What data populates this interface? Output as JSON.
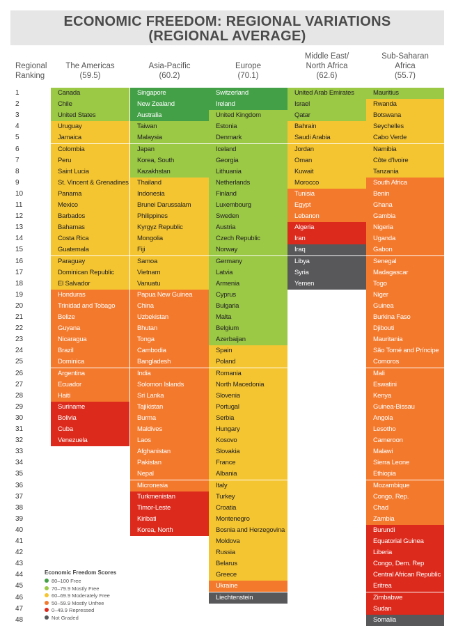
{
  "title_line1": "ECONOMIC FREEDOM: REGIONAL VARIATIONS",
  "title_line2": "(REGIONAL AVERAGE)",
  "rank_header_1": "Regional",
  "rank_header_2": "Ranking",
  "colors": {
    "free": "#43a047",
    "mostly_free": "#9bc845",
    "moderately_free": "#f5c531",
    "mostly_unfree": "#f3792d",
    "repressed": "#dc2a1c",
    "not_graded": "#58585b"
  },
  "legend": {
    "title": "Economic Freedom Scores",
    "items": [
      {
        "range": "80–100",
        "label": "Free",
        "category": "free"
      },
      {
        "range": "70–79.9",
        "label": "Mostly Free",
        "category": "mostly_free"
      },
      {
        "range": "60–69.9",
        "label": "Moderately Free",
        "category": "moderately_free"
      },
      {
        "range": "50–59.9",
        "label": "Mostly Unfree",
        "category": "mostly_unfree"
      },
      {
        "range": "0–49.9",
        "label": "Repressed",
        "category": "repressed"
      },
      {
        "range": "",
        "label": "Not Graded",
        "category": "not_graded"
      }
    ]
  },
  "chart_data": {
    "type": "table",
    "title": "ECONOMIC FREEDOM: REGIONAL VARIATIONS (REGIONAL AVERAGE)",
    "max_rank": 48,
    "regions": [
      {
        "name": "The Americas",
        "average": "(59.5)",
        "countries": [
          [
            "Canada",
            "mostly_free"
          ],
          [
            "Chile",
            "mostly_free"
          ],
          [
            "United States",
            "mostly_free"
          ],
          [
            "Uruguay",
            "moderately_free"
          ],
          [
            "Jamaica",
            "moderately_free"
          ],
          [
            "Colombia",
            "moderately_free"
          ],
          [
            "Peru",
            "moderately_free"
          ],
          [
            "Saint Lucia",
            "moderately_free"
          ],
          [
            "St. Vincent & Grenadines",
            "moderately_free"
          ],
          [
            "Panama",
            "moderately_free"
          ],
          [
            "Mexico",
            "moderately_free"
          ],
          [
            "Barbados",
            "moderately_free"
          ],
          [
            "Bahamas",
            "moderately_free"
          ],
          [
            "Costa Rica",
            "moderately_free"
          ],
          [
            "Guatemala",
            "moderately_free"
          ],
          [
            "Paraguay",
            "moderately_free"
          ],
          [
            "Dominican Republic",
            "moderately_free"
          ],
          [
            "El Salvador",
            "moderately_free"
          ],
          [
            "Honduras",
            "mostly_unfree"
          ],
          [
            "Trinidad and Tobago",
            "mostly_unfree"
          ],
          [
            "Belize",
            "mostly_unfree"
          ],
          [
            "Guyana",
            "mostly_unfree"
          ],
          [
            "Nicaragua",
            "mostly_unfree"
          ],
          [
            "Brazil",
            "mostly_unfree"
          ],
          [
            "Dominica",
            "mostly_unfree"
          ],
          [
            "Argentina",
            "mostly_unfree"
          ],
          [
            "Ecuador",
            "mostly_unfree"
          ],
          [
            "Haiti",
            "mostly_unfree"
          ],
          [
            "Suriname",
            "repressed"
          ],
          [
            "Bolivia",
            "repressed"
          ],
          [
            "Cuba",
            "repressed"
          ],
          [
            "Venezuela",
            "repressed"
          ]
        ]
      },
      {
        "name": "Asia-Pacific",
        "average": "(60.2)",
        "countries": [
          [
            "Singapore",
            "free"
          ],
          [
            "New Zealand",
            "free"
          ],
          [
            "Australia",
            "free"
          ],
          [
            "Taiwan",
            "mostly_free"
          ],
          [
            "Malaysia",
            "mostly_free"
          ],
          [
            "Japan",
            "mostly_free"
          ],
          [
            "Korea, South",
            "mostly_free"
          ],
          [
            "Kazakhstan",
            "mostly_free"
          ],
          [
            "Thailand",
            "moderately_free"
          ],
          [
            "Indonesia",
            "moderately_free"
          ],
          [
            "Brunei Darussalam",
            "moderately_free"
          ],
          [
            "Philippines",
            "moderately_free"
          ],
          [
            "Kyrgyz Republic",
            "moderately_free"
          ],
          [
            "Mongolia",
            "moderately_free"
          ],
          [
            "Fiji",
            "moderately_free"
          ],
          [
            "Samoa",
            "moderately_free"
          ],
          [
            "Vietnam",
            "moderately_free"
          ],
          [
            "Vanuatu",
            "moderately_free"
          ],
          [
            "Papua New Guinea",
            "mostly_unfree"
          ],
          [
            "China",
            "mostly_unfree"
          ],
          [
            "Uzbekistan",
            "mostly_unfree"
          ],
          [
            "Bhutan",
            "mostly_unfree"
          ],
          [
            "Tonga",
            "mostly_unfree"
          ],
          [
            "Cambodia",
            "mostly_unfree"
          ],
          [
            "Bangladesh",
            "mostly_unfree"
          ],
          [
            "India",
            "mostly_unfree"
          ],
          [
            "Solomon Islands",
            "mostly_unfree"
          ],
          [
            "Sri Lanka",
            "mostly_unfree"
          ],
          [
            "Tajikistan",
            "mostly_unfree"
          ],
          [
            "Burma",
            "mostly_unfree"
          ],
          [
            "Maldives",
            "mostly_unfree"
          ],
          [
            "Laos",
            "mostly_unfree"
          ],
          [
            "Afghanistan",
            "mostly_unfree"
          ],
          [
            "Pakistan",
            "mostly_unfree"
          ],
          [
            "Nepal",
            "mostly_unfree"
          ],
          [
            "Micronesia",
            "mostly_unfree"
          ],
          [
            "Turkmenistan",
            "repressed"
          ],
          [
            "Timor-Leste",
            "repressed"
          ],
          [
            "Kiribati",
            "repressed"
          ],
          [
            "Korea, North",
            "repressed"
          ]
        ]
      },
      {
        "name": "Europe",
        "average": "(70.1)",
        "countries": [
          [
            "Switzerland",
            "free"
          ],
          [
            "Ireland",
            "free"
          ],
          [
            "United Kingdom",
            "mostly_free"
          ],
          [
            "Estonia",
            "mostly_free"
          ],
          [
            "Denmark",
            "mostly_free"
          ],
          [
            "Iceland",
            "mostly_free"
          ],
          [
            "Georgia",
            "mostly_free"
          ],
          [
            "Lithuania",
            "mostly_free"
          ],
          [
            "Netherlands",
            "mostly_free"
          ],
          [
            "Finland",
            "mostly_free"
          ],
          [
            "Luxembourg",
            "mostly_free"
          ],
          [
            "Sweden",
            "mostly_free"
          ],
          [
            "Austria",
            "mostly_free"
          ],
          [
            "Czech Republic",
            "mostly_free"
          ],
          [
            "Norway",
            "mostly_free"
          ],
          [
            "Germany",
            "mostly_free"
          ],
          [
            "Latvia",
            "mostly_free"
          ],
          [
            "Armenia",
            "mostly_free"
          ],
          [
            "Cyprus",
            "mostly_free"
          ],
          [
            "Bulgaria",
            "mostly_free"
          ],
          [
            "Malta",
            "mostly_free"
          ],
          [
            "Belgium",
            "mostly_free"
          ],
          [
            "Azerbaijan",
            "mostly_free"
          ],
          [
            "Spain",
            "moderately_free"
          ],
          [
            "Poland",
            "moderately_free"
          ],
          [
            "Romania",
            "moderately_free"
          ],
          [
            "North Macedonia",
            "moderately_free"
          ],
          [
            "Slovenia",
            "moderately_free"
          ],
          [
            "Portugal",
            "moderately_free"
          ],
          [
            "Serbia",
            "moderately_free"
          ],
          [
            "Hungary",
            "moderately_free"
          ],
          [
            "Kosovo",
            "moderately_free"
          ],
          [
            "Slovakia",
            "moderately_free"
          ],
          [
            "France",
            "moderately_free"
          ],
          [
            "Albania",
            "moderately_free"
          ],
          [
            "Italy",
            "moderately_free"
          ],
          [
            "Turkey",
            "moderately_free"
          ],
          [
            "Croatia",
            "moderately_free"
          ],
          [
            "Montenegro",
            "moderately_free"
          ],
          [
            "Bosnia and Herzegovina",
            "moderately_free"
          ],
          [
            "Moldova",
            "moderately_free"
          ],
          [
            "Russia",
            "moderately_free"
          ],
          [
            "Belarus",
            "moderately_free"
          ],
          [
            "Greece",
            "moderately_free"
          ],
          [
            "Ukraine",
            "mostly_unfree"
          ],
          [
            "Liechtenstein",
            "not_graded"
          ]
        ]
      },
      {
        "name": "Middle East/ North Africa",
        "name_line1": "Middle East/",
        "name_line2": "North Africa",
        "average": "(62.6)",
        "countries": [
          [
            "United Arab Emirates",
            "mostly_free"
          ],
          [
            "Israel",
            "mostly_free"
          ],
          [
            "Qatar",
            "mostly_free"
          ],
          [
            "Bahrain",
            "moderately_free"
          ],
          [
            "Saudi Arabia",
            "moderately_free"
          ],
          [
            "Jordan",
            "moderately_free"
          ],
          [
            "Oman",
            "moderately_free"
          ],
          [
            "Kuwait",
            "moderately_free"
          ],
          [
            "Morocco",
            "moderately_free"
          ],
          [
            "Tunisia",
            "mostly_unfree"
          ],
          [
            "Egypt",
            "mostly_unfree"
          ],
          [
            "Lebanon",
            "mostly_unfree"
          ],
          [
            "Algeria",
            "repressed"
          ],
          [
            "Iran",
            "repressed"
          ],
          [
            "Iraq",
            "not_graded"
          ],
          [
            "Libya",
            "not_graded"
          ],
          [
            "Syria",
            "not_graded"
          ],
          [
            "Yemen",
            "not_graded"
          ]
        ]
      },
      {
        "name": "Sub-Saharan Africa",
        "name_line1": "Sub-Saharan",
        "name_line2": "Africa",
        "average": "(55.7)",
        "countries": [
          [
            "Mauritius",
            "mostly_free"
          ],
          [
            "Rwanda",
            "moderately_free"
          ],
          [
            "Botswana",
            "moderately_free"
          ],
          [
            "Seychelles",
            "moderately_free"
          ],
          [
            "Cabo Verde",
            "moderately_free"
          ],
          [
            "Namibia",
            "moderately_free"
          ],
          [
            "Côte d'Ivoire",
            "moderately_free"
          ],
          [
            "Tanzania",
            "moderately_free"
          ],
          [
            "South Africa",
            "mostly_unfree"
          ],
          [
            "Benin",
            "mostly_unfree"
          ],
          [
            "Ghana",
            "mostly_unfree"
          ],
          [
            "Gambia",
            "mostly_unfree"
          ],
          [
            "Nigeria",
            "mostly_unfree"
          ],
          [
            "Uganda",
            "mostly_unfree"
          ],
          [
            "Gabon",
            "mostly_unfree"
          ],
          [
            "Senegal",
            "mostly_unfree"
          ],
          [
            "Madagascar",
            "mostly_unfree"
          ],
          [
            "Togo",
            "mostly_unfree"
          ],
          [
            "Niger",
            "mostly_unfree"
          ],
          [
            "Guinea",
            "mostly_unfree"
          ],
          [
            "Burkina Faso",
            "mostly_unfree"
          ],
          [
            "Djibouti",
            "mostly_unfree"
          ],
          [
            "Mauritania",
            "mostly_unfree"
          ],
          [
            "São Tomé and Príncipe",
            "mostly_unfree"
          ],
          [
            "Comoros",
            "mostly_unfree"
          ],
          [
            "Mali",
            "mostly_unfree"
          ],
          [
            "Eswatini",
            "mostly_unfree"
          ],
          [
            "Kenya",
            "mostly_unfree"
          ],
          [
            "Guinea-Bissau",
            "mostly_unfree"
          ],
          [
            "Angola",
            "mostly_unfree"
          ],
          [
            "Lesotho",
            "mostly_unfree"
          ],
          [
            "Cameroon",
            "mostly_unfree"
          ],
          [
            "Malawi",
            "mostly_unfree"
          ],
          [
            "Sierra Leone",
            "mostly_unfree"
          ],
          [
            "Ethiopia",
            "mostly_unfree"
          ],
          [
            "Mozambique",
            "mostly_unfree"
          ],
          [
            "Congo, Rep.",
            "mostly_unfree"
          ],
          [
            "Chad",
            "mostly_unfree"
          ],
          [
            "Zambia",
            "mostly_unfree"
          ],
          [
            "Burundi",
            "repressed"
          ],
          [
            "Equatorial Guinea",
            "repressed"
          ],
          [
            "Liberia",
            "repressed"
          ],
          [
            "Congo, Dem. Rep",
            "repressed"
          ],
          [
            "Central African Republic",
            "repressed"
          ],
          [
            "Eritrea",
            "repressed"
          ],
          [
            "Zimbabwe",
            "repressed"
          ],
          [
            "Sudan",
            "repressed"
          ],
          [
            "Somalia",
            "not_graded"
          ]
        ]
      }
    ]
  }
}
